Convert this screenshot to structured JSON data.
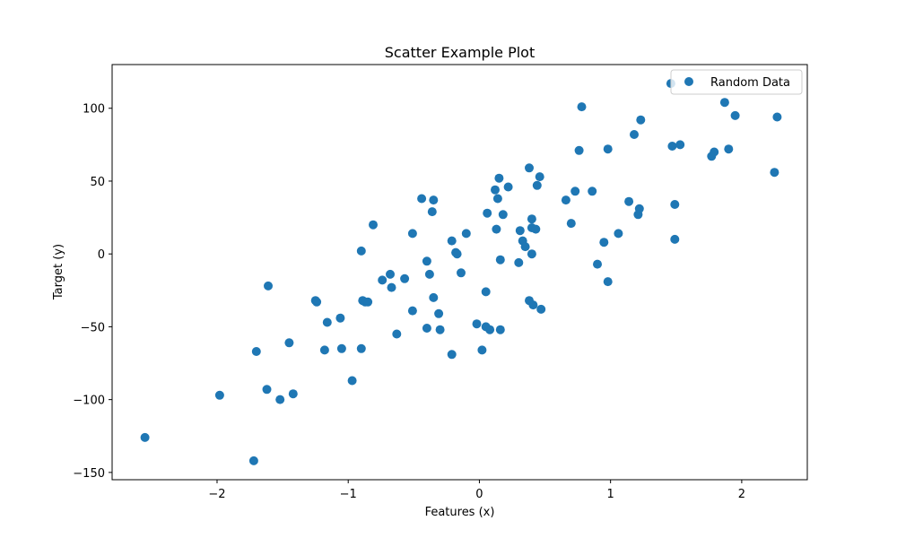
{
  "chart_data": {
    "type": "scatter",
    "title": "Scatter Example Plot",
    "xlabel": "Features (x)",
    "ylabel": "Target (y)",
    "xlim": [
      -2.8,
      2.5
    ],
    "ylim": [
      -155,
      130
    ],
    "xticks": [
      -2,
      -1,
      0,
      1,
      2
    ],
    "yticks": [
      -150,
      -100,
      -50,
      0,
      50,
      100
    ],
    "xtick_labels": [
      "−2",
      "−1",
      "0",
      "1",
      "2"
    ],
    "ytick_labels": [
      "−150",
      "−100",
      "−50",
      "0",
      "50",
      "100"
    ],
    "grid": false,
    "legend": {
      "placement": "upper-right",
      "entries": [
        "Random Data"
      ]
    },
    "colors": {
      "series": "#1f77b4"
    },
    "series": [
      {
        "name": "Random Data",
        "points": [
          [
            -2.55,
            -126
          ],
          [
            -1.98,
            -97
          ],
          [
            -1.72,
            -142
          ],
          [
            -1.7,
            -67
          ],
          [
            -1.62,
            -93
          ],
          [
            -1.61,
            -22
          ],
          [
            -1.52,
            -100
          ],
          [
            -1.45,
            -61
          ],
          [
            -1.42,
            -96
          ],
          [
            -1.25,
            -32
          ],
          [
            -1.24,
            -33
          ],
          [
            -1.18,
            -66
          ],
          [
            -1.16,
            -47
          ],
          [
            -1.06,
            -44
          ],
          [
            -1.05,
            -65
          ],
          [
            -0.97,
            -87
          ],
          [
            -0.9,
            2
          ],
          [
            -0.9,
            -65
          ],
          [
            -0.89,
            -32
          ],
          [
            -0.87,
            -33
          ],
          [
            -0.85,
            -33
          ],
          [
            -0.81,
            20
          ],
          [
            -0.74,
            -18
          ],
          [
            -0.68,
            -14
          ],
          [
            -0.67,
            -23
          ],
          [
            -0.63,
            -55
          ],
          [
            -0.57,
            -17
          ],
          [
            -0.51,
            -39
          ],
          [
            -0.51,
            14
          ],
          [
            -0.44,
            38
          ],
          [
            -0.4,
            -5
          ],
          [
            -0.4,
            -51
          ],
          [
            -0.38,
            -14
          ],
          [
            -0.36,
            29
          ],
          [
            -0.35,
            -30
          ],
          [
            -0.35,
            37
          ],
          [
            -0.31,
            -41
          ],
          [
            -0.3,
            -52
          ],
          [
            -0.21,
            9
          ],
          [
            -0.21,
            -69
          ],
          [
            -0.18,
            1
          ],
          [
            -0.17,
            0
          ],
          [
            -0.14,
            -13
          ],
          [
            -0.1,
            14
          ],
          [
            -0.02,
            -48
          ],
          [
            0.02,
            -66
          ],
          [
            0.05,
            -26
          ],
          [
            0.05,
            -50
          ],
          [
            0.06,
            28
          ],
          [
            0.08,
            -52
          ],
          [
            0.12,
            44
          ],
          [
            0.13,
            17
          ],
          [
            0.14,
            38
          ],
          [
            0.15,
            52
          ],
          [
            0.16,
            -4
          ],
          [
            0.16,
            -52
          ],
          [
            0.18,
            27
          ],
          [
            0.22,
            46
          ],
          [
            0.3,
            -6
          ],
          [
            0.31,
            16
          ],
          [
            0.33,
            9
          ],
          [
            0.35,
            5
          ],
          [
            0.38,
            59
          ],
          [
            0.38,
            -32
          ],
          [
            0.4,
            24
          ],
          [
            0.4,
            0
          ],
          [
            0.4,
            18
          ],
          [
            0.41,
            -35
          ],
          [
            0.43,
            17
          ],
          [
            0.44,
            47
          ],
          [
            0.46,
            53
          ],
          [
            0.47,
            -38
          ],
          [
            0.66,
            37
          ],
          [
            0.7,
            21
          ],
          [
            0.73,
            43
          ],
          [
            0.76,
            71
          ],
          [
            0.78,
            101
          ],
          [
            0.86,
            43
          ],
          [
            0.9,
            -7
          ],
          [
            0.95,
            8
          ],
          [
            0.98,
            -19
          ],
          [
            0.98,
            72
          ],
          [
            1.06,
            14
          ],
          [
            1.14,
            36
          ],
          [
            1.18,
            82
          ],
          [
            1.21,
            27
          ],
          [
            1.22,
            31
          ],
          [
            1.23,
            92
          ],
          [
            1.46,
            117
          ],
          [
            1.47,
            74
          ],
          [
            1.49,
            34
          ],
          [
            1.49,
            10
          ],
          [
            1.53,
            75
          ],
          [
            1.77,
            67
          ],
          [
            1.79,
            70
          ],
          [
            1.87,
            104
          ],
          [
            1.9,
            72
          ],
          [
            1.95,
            95
          ],
          [
            2.25,
            56
          ],
          [
            2.27,
            94
          ]
        ]
      }
    ]
  }
}
